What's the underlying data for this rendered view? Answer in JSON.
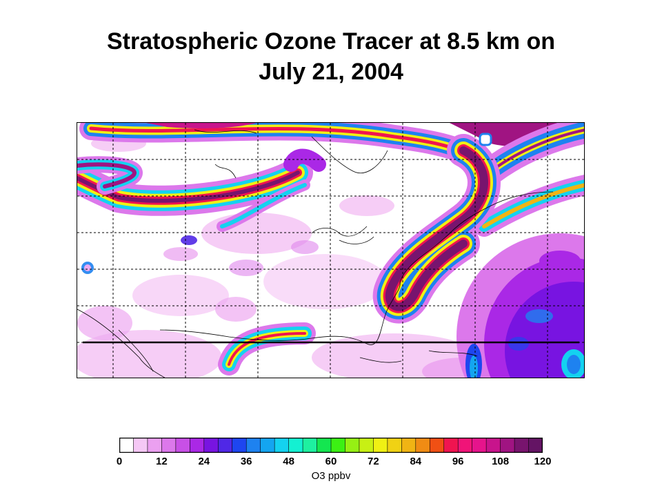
{
  "title_line1": "Stratospheric Ozone Tracer at 8.5 km on",
  "title_line2": "July 21, 2004",
  "colorbar": {
    "units": "O3 ppbv",
    "min": 0,
    "max": 120,
    "tick_labels": [
      "0",
      "12",
      "24",
      "36",
      "48",
      "60",
      "72",
      "84",
      "96",
      "108",
      "120"
    ],
    "colors": [
      "#ffffff",
      "#f5c8f5",
      "#eba0f0",
      "#dc78eb",
      "#c850e6",
      "#aa28e6",
      "#7814e1",
      "#5028e6",
      "#1e46f0",
      "#1e82f0",
      "#14a5f0",
      "#14d2f0",
      "#14f0d2",
      "#1ef0a0",
      "#14e650",
      "#3cf014",
      "#96f014",
      "#c8f014",
      "#f0f014",
      "#f0d214",
      "#f0b414",
      "#f08c14",
      "#f05014",
      "#f01450",
      "#f01478",
      "#e6148c",
      "#c8148c",
      "#a01482",
      "#78146e",
      "#641464"
    ]
  },
  "map": {
    "features": [
      "ozone-streamer-north",
      "ozone-tongue-west",
      "ozone-filament-east-coast",
      "ozone-high-atlantic",
      "ozone-low-gulf"
    ],
    "transect_line": true,
    "grid": "dashed"
  }
}
